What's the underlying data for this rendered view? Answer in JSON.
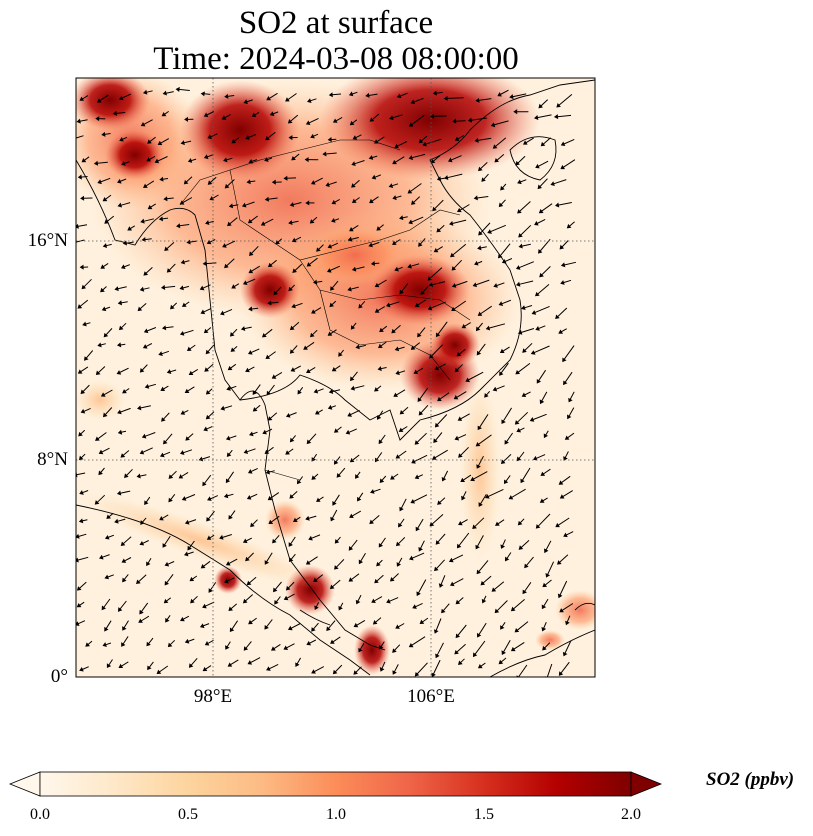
{
  "title": {
    "line1": "SO2 at surface",
    "line2": "Time: 2024-03-08 08:00:00"
  },
  "map": {
    "lon_range": [
      93.0,
      112.0
    ],
    "lat_range": [
      0.0,
      22.0
    ],
    "lat_ticks": [
      {
        "value": 16,
        "label": "16°N"
      },
      {
        "value": 8,
        "label": "8°N"
      },
      {
        "value": 0,
        "label": "0°"
      }
    ],
    "lon_ticks": [
      {
        "value": 98,
        "label": "98°E"
      },
      {
        "value": 106,
        "label": "106°E"
      }
    ],
    "gridlines": "dotted"
  },
  "colorbar": {
    "label": "SO2 (ppbv)",
    "range": [
      0.0,
      2.0
    ],
    "extend": "both",
    "cmap": "OrRd",
    "stops": [
      "#fff7ec",
      "#fee8c8",
      "#fdd49e",
      "#fdbb84",
      "#fc8d59",
      "#ef6548",
      "#d7301f",
      "#b30000",
      "#7f0000"
    ],
    "ticks": [
      {
        "value": 0.0,
        "label": "0.0"
      },
      {
        "value": 0.5,
        "label": "0.5"
      },
      {
        "value": 1.0,
        "label": "1.0"
      },
      {
        "value": 1.5,
        "label": "1.5"
      },
      {
        "value": 2.0,
        "label": "2.0"
      }
    ]
  }
}
